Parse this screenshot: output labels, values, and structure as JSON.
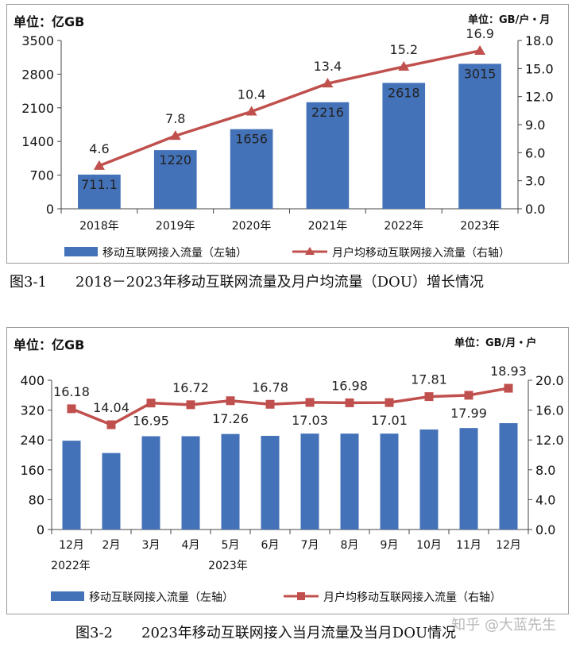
{
  "charts": [
    {
      "unit_left": "单位：亿GB",
      "unit_right": "单位：GB/户・月",
      "caption": "图3-1　　2018－2023年移动互联网流量及月户均流量（DOU）增长情况",
      "legend_bar": "移动互联网接入流量（左轴）",
      "legend_line": "月户均移动互联网接入流量（右轴）"
    },
    {
      "unit_left": "单位：亿GB",
      "unit_right": "单位：GB/月・户",
      "caption": "图3-2　　2023年移动互联网接入当月流量及当月DOU情况",
      "legend_bar": "移动互联网接入流量（左轴）",
      "legend_line": "月户均移动互联网接入流量（右轴）",
      "year_labels": [
        "2022年",
        "2023年"
      ]
    }
  ],
  "watermark": "知乎 @大蓝先生",
  "chart_data": [
    {
      "type": "bar",
      "categories": [
        "2018年",
        "2019年",
        "2020年",
        "2021年",
        "2022年",
        "2023年"
      ],
      "series": [
        {
          "name": "移动互联网接入流量（左轴）",
          "type": "bar",
          "axis": "left",
          "values": [
            711.1,
            1220,
            1656,
            2216,
            2618,
            3015
          ],
          "labels": [
            "711.1",
            "1220",
            "1656",
            "2216",
            "2618",
            "3015"
          ]
        },
        {
          "name": "月户均移动互联网接入流量（右轴）",
          "type": "line",
          "axis": "right",
          "values": [
            4.6,
            7.8,
            10.4,
            13.4,
            15.2,
            16.9
          ],
          "labels": [
            "4.6",
            "7.8",
            "10.4",
            "13.4",
            "15.2",
            "16.9"
          ]
        }
      ],
      "ylim_left": [
        0,
        3500
      ],
      "yticks_left": [
        "0",
        "700",
        "1400",
        "2100",
        "2800",
        "3500"
      ],
      "ylim_right": [
        0,
        18
      ],
      "yticks_right": [
        "0.0",
        "3.0",
        "6.0",
        "9.0",
        "12.0",
        "15.0",
        "18.0"
      ],
      "bar_color": "#4472b8",
      "line_color": "#c0504d",
      "marker": "triangle",
      "grid": false,
      "legend_position": "bottom"
    },
    {
      "type": "bar",
      "categories": [
        "12月",
        "2月",
        "3月",
        "4月",
        "5月",
        "6月",
        "7月",
        "8月",
        "9月",
        "10月",
        "11月",
        "12月"
      ],
      "series": [
        {
          "name": "移动互联网接入流量（左轴）",
          "type": "bar",
          "axis": "left",
          "values": [
            238,
            205,
            250,
            250,
            256,
            251,
            257,
            257,
            257,
            268,
            272,
            285
          ]
        },
        {
          "name": "月户均移动互联网接入流量（右轴）",
          "type": "line",
          "axis": "right",
          "values": [
            16.18,
            14.04,
            16.95,
            16.72,
            17.26,
            16.78,
            17.03,
            16.98,
            17.01,
            17.81,
            17.99,
            18.93
          ],
          "labels": [
            "16.18",
            "14.04",
            "16.95",
            "16.72",
            "17.26",
            "16.78",
            "17.03",
            "16.98",
            "17.01",
            "17.81",
            "17.99",
            "18.93"
          ]
        }
      ],
      "ylim_left": [
        0,
        400
      ],
      "yticks_left": [
        "0",
        "80",
        "160",
        "240",
        "320",
        "400"
      ],
      "ylim_right": [
        0,
        20
      ],
      "yticks_right": [
        "0.0",
        "4.0",
        "8.0",
        "12.0",
        "16.0",
        "20.0"
      ],
      "bar_color": "#4472b8",
      "line_color": "#c0504d",
      "marker": "square",
      "grid": false,
      "legend_position": "bottom"
    }
  ]
}
